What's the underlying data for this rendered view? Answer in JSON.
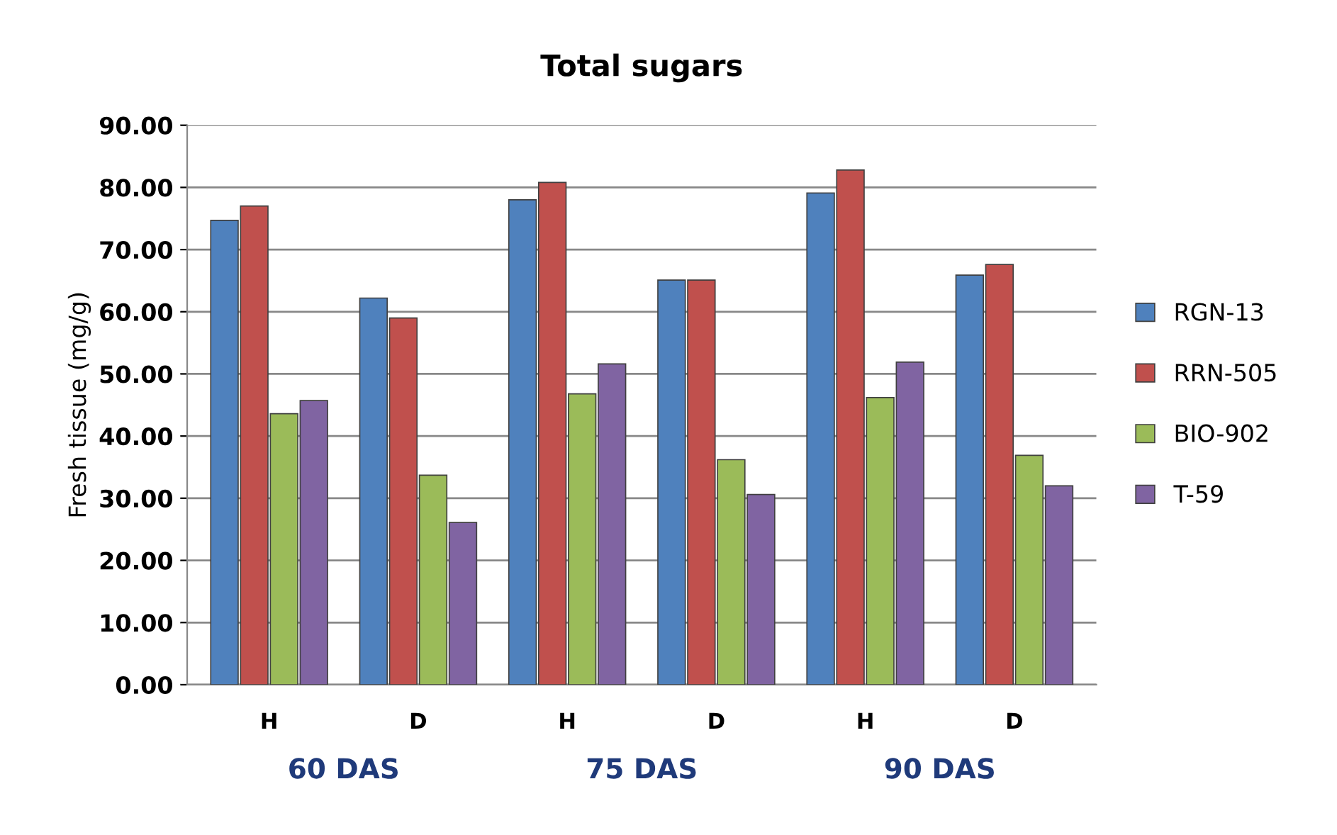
{
  "chart_data": {
    "type": "bar",
    "title": "Total sugars",
    "ylabel": "Fresh tissue (mg/g)",
    "categories": [
      "H",
      "D",
      "H",
      "D",
      "H",
      "D"
    ],
    "series": [
      {
        "name": "RGN-13",
        "color": "#4f81bd",
        "values": [
          74.7,
          62.2,
          78.0,
          65.1,
          79.1,
          65.9
        ]
      },
      {
        "name": "RRN-505",
        "color": "#c0504d",
        "values": [
          77.0,
          59.0,
          80.8,
          65.1,
          82.8,
          67.6
        ]
      },
      {
        "name": "BIO-902",
        "color": "#9bbb59",
        "values": [
          43.6,
          33.7,
          46.8,
          36.2,
          46.2,
          36.9
        ]
      },
      {
        "name": "T-59",
        "color": "#8064a2",
        "values": [
          45.7,
          26.1,
          51.6,
          30.6,
          51.9,
          32.0
        ]
      }
    ],
    "ylim": [
      0,
      90
    ],
    "yticks": [
      {
        "value": 0,
        "label": "0.00"
      },
      {
        "value": 10,
        "label": "10.00"
      },
      {
        "value": 20,
        "label": "20.00"
      },
      {
        "value": 30,
        "label": "30.00"
      },
      {
        "value": 40,
        "label": "40.00"
      },
      {
        "value": 50,
        "label": "50.00"
      },
      {
        "value": 60,
        "label": "60.00"
      },
      {
        "value": 70,
        "label": "70.00"
      },
      {
        "value": 80,
        "label": "80.00"
      },
      {
        "value": 90,
        "label": "90.00"
      }
    ],
    "grid": "y",
    "legend": "right",
    "annotations": [
      "60 DAS",
      "75 DAS",
      "90 DAS"
    ]
  }
}
